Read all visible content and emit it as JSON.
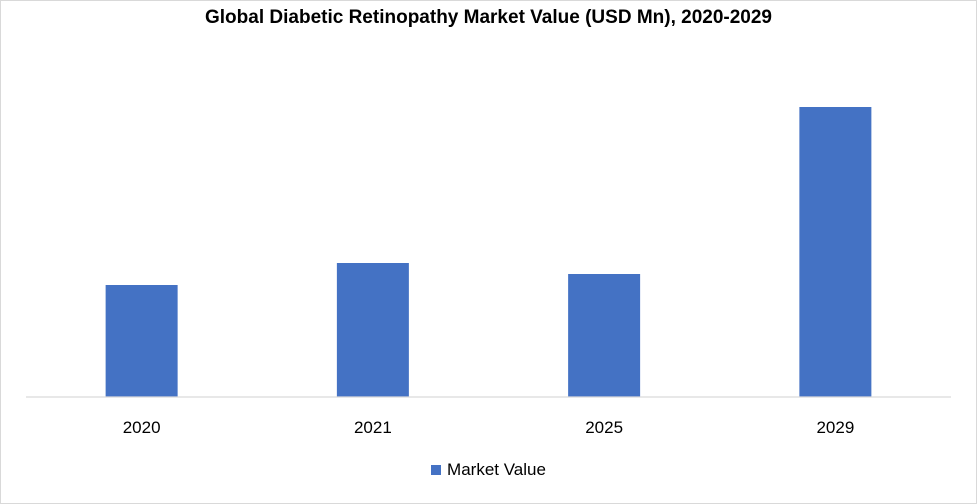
{
  "chart_data": {
    "type": "bar",
    "title": "Global Diabetic Retinopathy Market Value (USD Mn), 2020-2029",
    "categories": [
      "2020",
      "2021",
      "2025",
      "2029"
    ],
    "series": [
      {
        "name": "Market Value",
        "values": [
          112,
          134,
          123,
          290
        ]
      }
    ],
    "xlabel": "",
    "ylabel": "",
    "ylim": [
      0,
      340
    ],
    "grid": false,
    "legend": "bottom",
    "colors": {
      "bar": "#4472c4",
      "axis": "#d9d9d9"
    }
  }
}
